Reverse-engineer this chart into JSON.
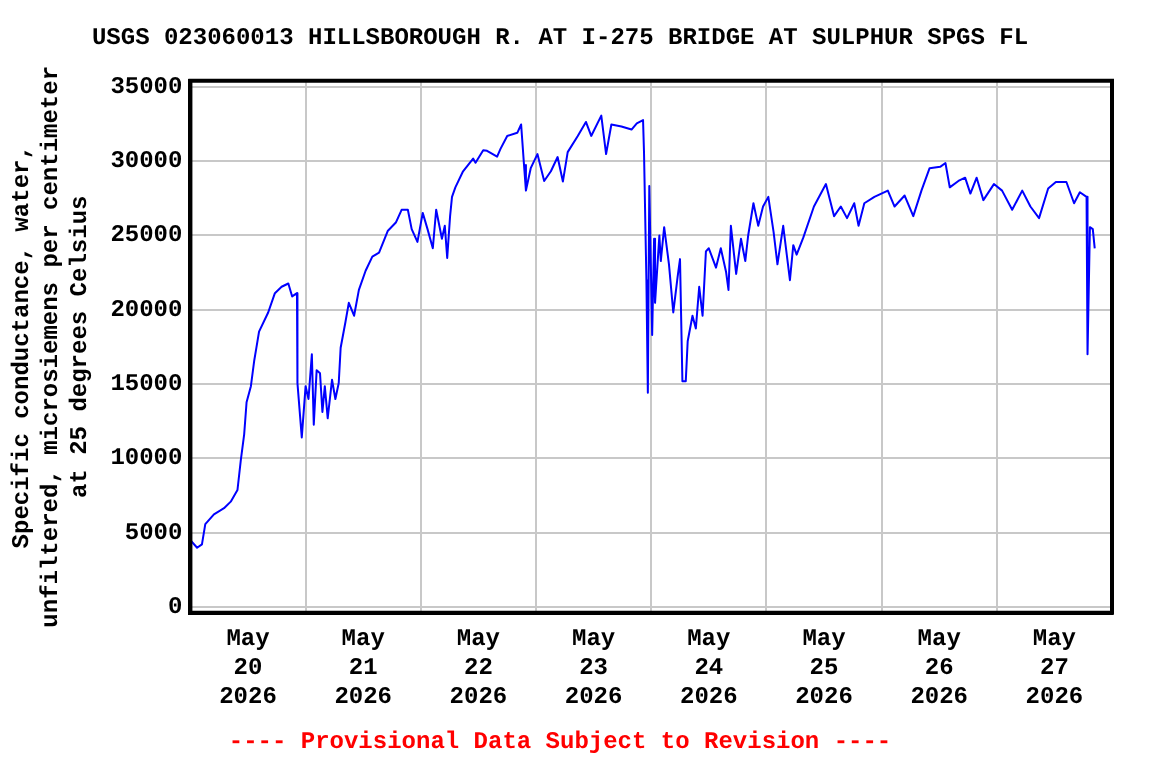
{
  "chart_data": {
    "type": "line",
    "title": "USGS 023060013 HILLSBOROUGH R. AT I-275 BRIDGE AT SULPHUR SPGS FL",
    "ylabel": "Specific conductance, water, unfiltered, microsiemens per centimeter at 25 degrees Celsius",
    "annotations": [
      "---- Provisional Data Subject to Revision ----"
    ],
    "xlim": [
      "2026-05-20T00:00",
      "2026-05-28T00:00"
    ],
    "xticks": [
      {
        "value": "2026-05-20T12:00",
        "label": "May 20 2026"
      },
      {
        "value": "2026-05-21T00:00",
        "label": null
      },
      {
        "value": "2026-05-21T12:00",
        "label": "May 21 2026"
      },
      {
        "value": "2026-05-22T00:00",
        "label": null
      },
      {
        "value": "2026-05-22T12:00",
        "label": "May 22 2026"
      },
      {
        "value": "2026-05-23T00:00",
        "label": null
      },
      {
        "value": "2026-05-23T12:00",
        "label": "May 23 2026"
      },
      {
        "value": "2026-05-24T00:00",
        "label": null
      },
      {
        "value": "2026-05-24T12:00",
        "label": "May 24 2026"
      },
      {
        "value": "2026-05-25T00:00",
        "label": null
      },
      {
        "value": "2026-05-25T12:00",
        "label": "May 25 2026"
      },
      {
        "value": "2026-05-26T00:00",
        "label": null
      },
      {
        "value": "2026-05-26T12:00",
        "label": "May 26 2026"
      },
      {
        "value": "2026-05-27T00:00",
        "label": null
      },
      {
        "value": "2026-05-27T12:00",
        "label": "May 27 2026"
      }
    ],
    "ylim": [
      -400,
      35400
    ],
    "yticks": [
      0,
      5000,
      10000,
      15000,
      20000,
      25000,
      30000,
      35000
    ],
    "grid": true,
    "legend": false,
    "marker": "none",
    "line_style": "solid",
    "x": [
      "2026-05-20T00:00",
      "2026-05-20T01:24",
      "2026-05-20T02:24",
      "2026-05-20T03:06",
      "2026-05-20T04:54",
      "2026-05-20T07:00",
      "2026-05-20T08:24",
      "2026-05-20T09:48",
      "2026-05-20T10:30",
      "2026-05-20T11:12",
      "2026-05-20T11:42",
      "2026-05-20T12:36",
      "2026-05-20T13:18",
      "2026-05-20T14:18",
      "2026-05-20T16:12",
      "2026-05-20T17:36",
      "2026-05-20T19:00",
      "2026-05-20T20:24",
      "2026-05-20T21:12",
      "2026-05-20T22:12",
      "2026-05-20T22:18",
      "2026-05-20T23:12",
      "2026-05-21T00:00",
      "2026-05-21T00:36",
      "2026-05-21T01:18",
      "2026-05-21T01:42",
      "2026-05-21T02:18",
      "2026-05-21T03:00",
      "2026-05-21T03:30",
      "2026-05-21T04:00",
      "2026-05-21T04:36",
      "2026-05-21T05:30",
      "2026-05-21T06:12",
      "2026-05-21T06:54",
      "2026-05-21T07:18",
      "2026-05-21T08:18",
      "2026-05-21T09:00",
      "2026-05-21T10:06",
      "2026-05-21T11:06",
      "2026-05-21T12:30",
      "2026-05-21T13:54",
      "2026-05-21T15:18",
      "2026-05-21T17:06",
      "2026-05-21T18:48",
      "2026-05-21T20:00",
      "2026-05-21T21:18",
      "2026-05-21T22:06",
      "2026-05-21T23:18",
      "2026-05-22T00:24",
      "2026-05-22T01:24",
      "2026-05-22T02:30",
      "2026-05-22T03:12",
      "2026-05-22T04:24",
      "2026-05-22T05:00",
      "2026-05-22T05:30",
      "2026-05-22T06:06",
      "2026-05-22T06:30",
      "2026-05-22T07:12",
      "2026-05-22T08:48",
      "2026-05-22T10:54",
      "2026-05-22T11:24",
      "2026-05-22T13:00",
      "2026-05-22T13:48",
      "2026-05-22T15:54",
      "2026-05-22T16:36",
      "2026-05-22T18:00",
      "2026-05-22T20:06",
      "2026-05-22T20:54",
      "2026-05-22T21:30",
      "2026-05-22T21:54",
      "2026-05-22T22:54",
      "2026-05-23T00:18",
      "2026-05-23T01:42",
      "2026-05-23T03:06",
      "2026-05-23T04:30",
      "2026-05-23T05:36",
      "2026-05-23T06:36",
      "2026-05-23T08:42",
      "2026-05-23T10:24",
      "2026-05-23T11:30",
      "2026-05-23T13:36",
      "2026-05-23T14:36",
      "2026-05-23T15:42",
      "2026-05-23T17:48",
      "2026-05-23T19:54",
      "2026-05-23T21:00",
      "2026-05-23T22:18",
      "2026-05-23T22:30",
      "2026-05-23T23:00",
      "2026-05-23T23:18",
      "2026-05-23T23:36",
      "2026-05-24T00:12",
      "2026-05-24T00:36",
      "2026-05-24T00:48",
      "2026-05-24T01:42",
      "2026-05-24T02:00",
      "2026-05-24T02:42",
      "2026-05-24T03:42",
      "2026-05-24T04:36",
      "2026-05-24T05:30",
      "2026-05-24T06:00",
      "2026-05-24T06:30",
      "2026-05-24T07:12",
      "2026-05-24T07:36",
      "2026-05-24T08:36",
      "2026-05-24T09:18",
      "2026-05-24T10:00",
      "2026-05-24T10:42",
      "2026-05-24T11:24",
      "2026-05-24T12:00",
      "2026-05-24T13:30",
      "2026-05-24T14:30",
      "2026-05-24T15:36",
      "2026-05-24T16:06",
      "2026-05-24T16:36",
      "2026-05-24T17:42",
      "2026-05-24T18:42",
      "2026-05-24T19:36",
      "2026-05-24T20:12",
      "2026-05-24T21:18",
      "2026-05-24T22:18",
      "2026-05-24T23:18",
      "2026-05-25T00:24",
      "2026-05-25T01:30",
      "2026-05-25T02:18",
      "2026-05-25T03:30",
      "2026-05-25T04:54",
      "2026-05-25T05:36",
      "2026-05-25T06:18",
      "2026-05-25T07:42",
      "2026-05-25T09:54",
      "2026-05-25T12:24",
      "2026-05-25T14:06",
      "2026-05-25T15:30",
      "2026-05-25T16:48",
      "2026-05-25T18:18",
      "2026-05-25T19:12",
      "2026-05-25T20:24",
      "2026-05-25T22:30",
      "2026-05-26T01:18",
      "2026-05-26T02:42",
      "2026-05-26T04:48",
      "2026-05-26T06:36",
      "2026-05-26T08:18",
      "2026-05-26T10:00",
      "2026-05-26T12:12",
      "2026-05-26T13:18",
      "2026-05-26T14:12",
      "2026-05-26T16:00",
      "2026-05-26T17:24",
      "2026-05-26T18:30",
      "2026-05-26T19:48",
      "2026-05-26T21:12",
      "2026-05-26T23:24",
      "2026-05-27T01:06",
      "2026-05-27T03:12",
      "2026-05-27T05:18",
      "2026-05-27T07:00",
      "2026-05-27T08:48",
      "2026-05-27T10:42",
      "2026-05-27T12:18",
      "2026-05-27T14:30",
      "2026-05-27T16:06",
      "2026-05-27T17:18",
      "2026-05-27T18:42",
      "2026-05-27T18:54",
      "2026-05-27T19:24",
      "2026-05-27T20:00",
      "2026-05-27T20:24"
    ],
    "series": [
      {
        "color": "#0000ff",
        "values": [
          4490,
          3980,
          4200,
          5570,
          6220,
          6640,
          7080,
          7860,
          9880,
          11610,
          13770,
          14850,
          16580,
          18520,
          19810,
          21110,
          21540,
          21760,
          20890,
          21110,
          15060,
          11400,
          14850,
          13990,
          17000,
          12260,
          15930,
          15720,
          13120,
          14850,
          12690,
          15280,
          13990,
          15060,
          17440,
          19170,
          20460,
          19590,
          21330,
          22620,
          23570,
          23830,
          25290,
          25860,
          26720,
          26720,
          25420,
          24560,
          26510,
          25420,
          24130,
          26720,
          24770,
          25640,
          23480,
          26290,
          27590,
          28230,
          29310,
          30170,
          29890,
          30730,
          30690,
          30300,
          30820,
          31690,
          31900,
          32460,
          29740,
          28010,
          29520,
          30470,
          28660,
          29310,
          30270,
          28620,
          30600,
          31690,
          32630,
          31690,
          33060,
          30470,
          32460,
          32330,
          32120,
          32540,
          32760,
          30600,
          21980,
          14410,
          28320,
          18300,
          24770,
          20460,
          24990,
          23270,
          25550,
          23050,
          19810,
          22200,
          23400,
          15190,
          15190,
          17870,
          19590,
          18730,
          21540,
          19590,
          23920,
          24130,
          22830,
          24130,
          22530,
          21330,
          25640,
          22400,
          24770,
          23270,
          24990,
          27160,
          25640,
          26940,
          27590,
          25210,
          23050,
          25640,
          21980,
          24340,
          23700,
          24860,
          26940,
          28450,
          26290,
          26940,
          26160,
          27160,
          25640,
          27160,
          27590,
          28010,
          26940,
          27680,
          26290,
          28010,
          29520,
          29610,
          29870,
          28230,
          28660,
          28880,
          27810,
          28880,
          27370,
          28450,
          28010,
          26720,
          28010,
          26940,
          26160,
          28150,
          28590,
          28590,
          27160,
          27900,
          27590,
          17000,
          25550,
          25420,
          24130
        ]
      }
    ]
  }
}
